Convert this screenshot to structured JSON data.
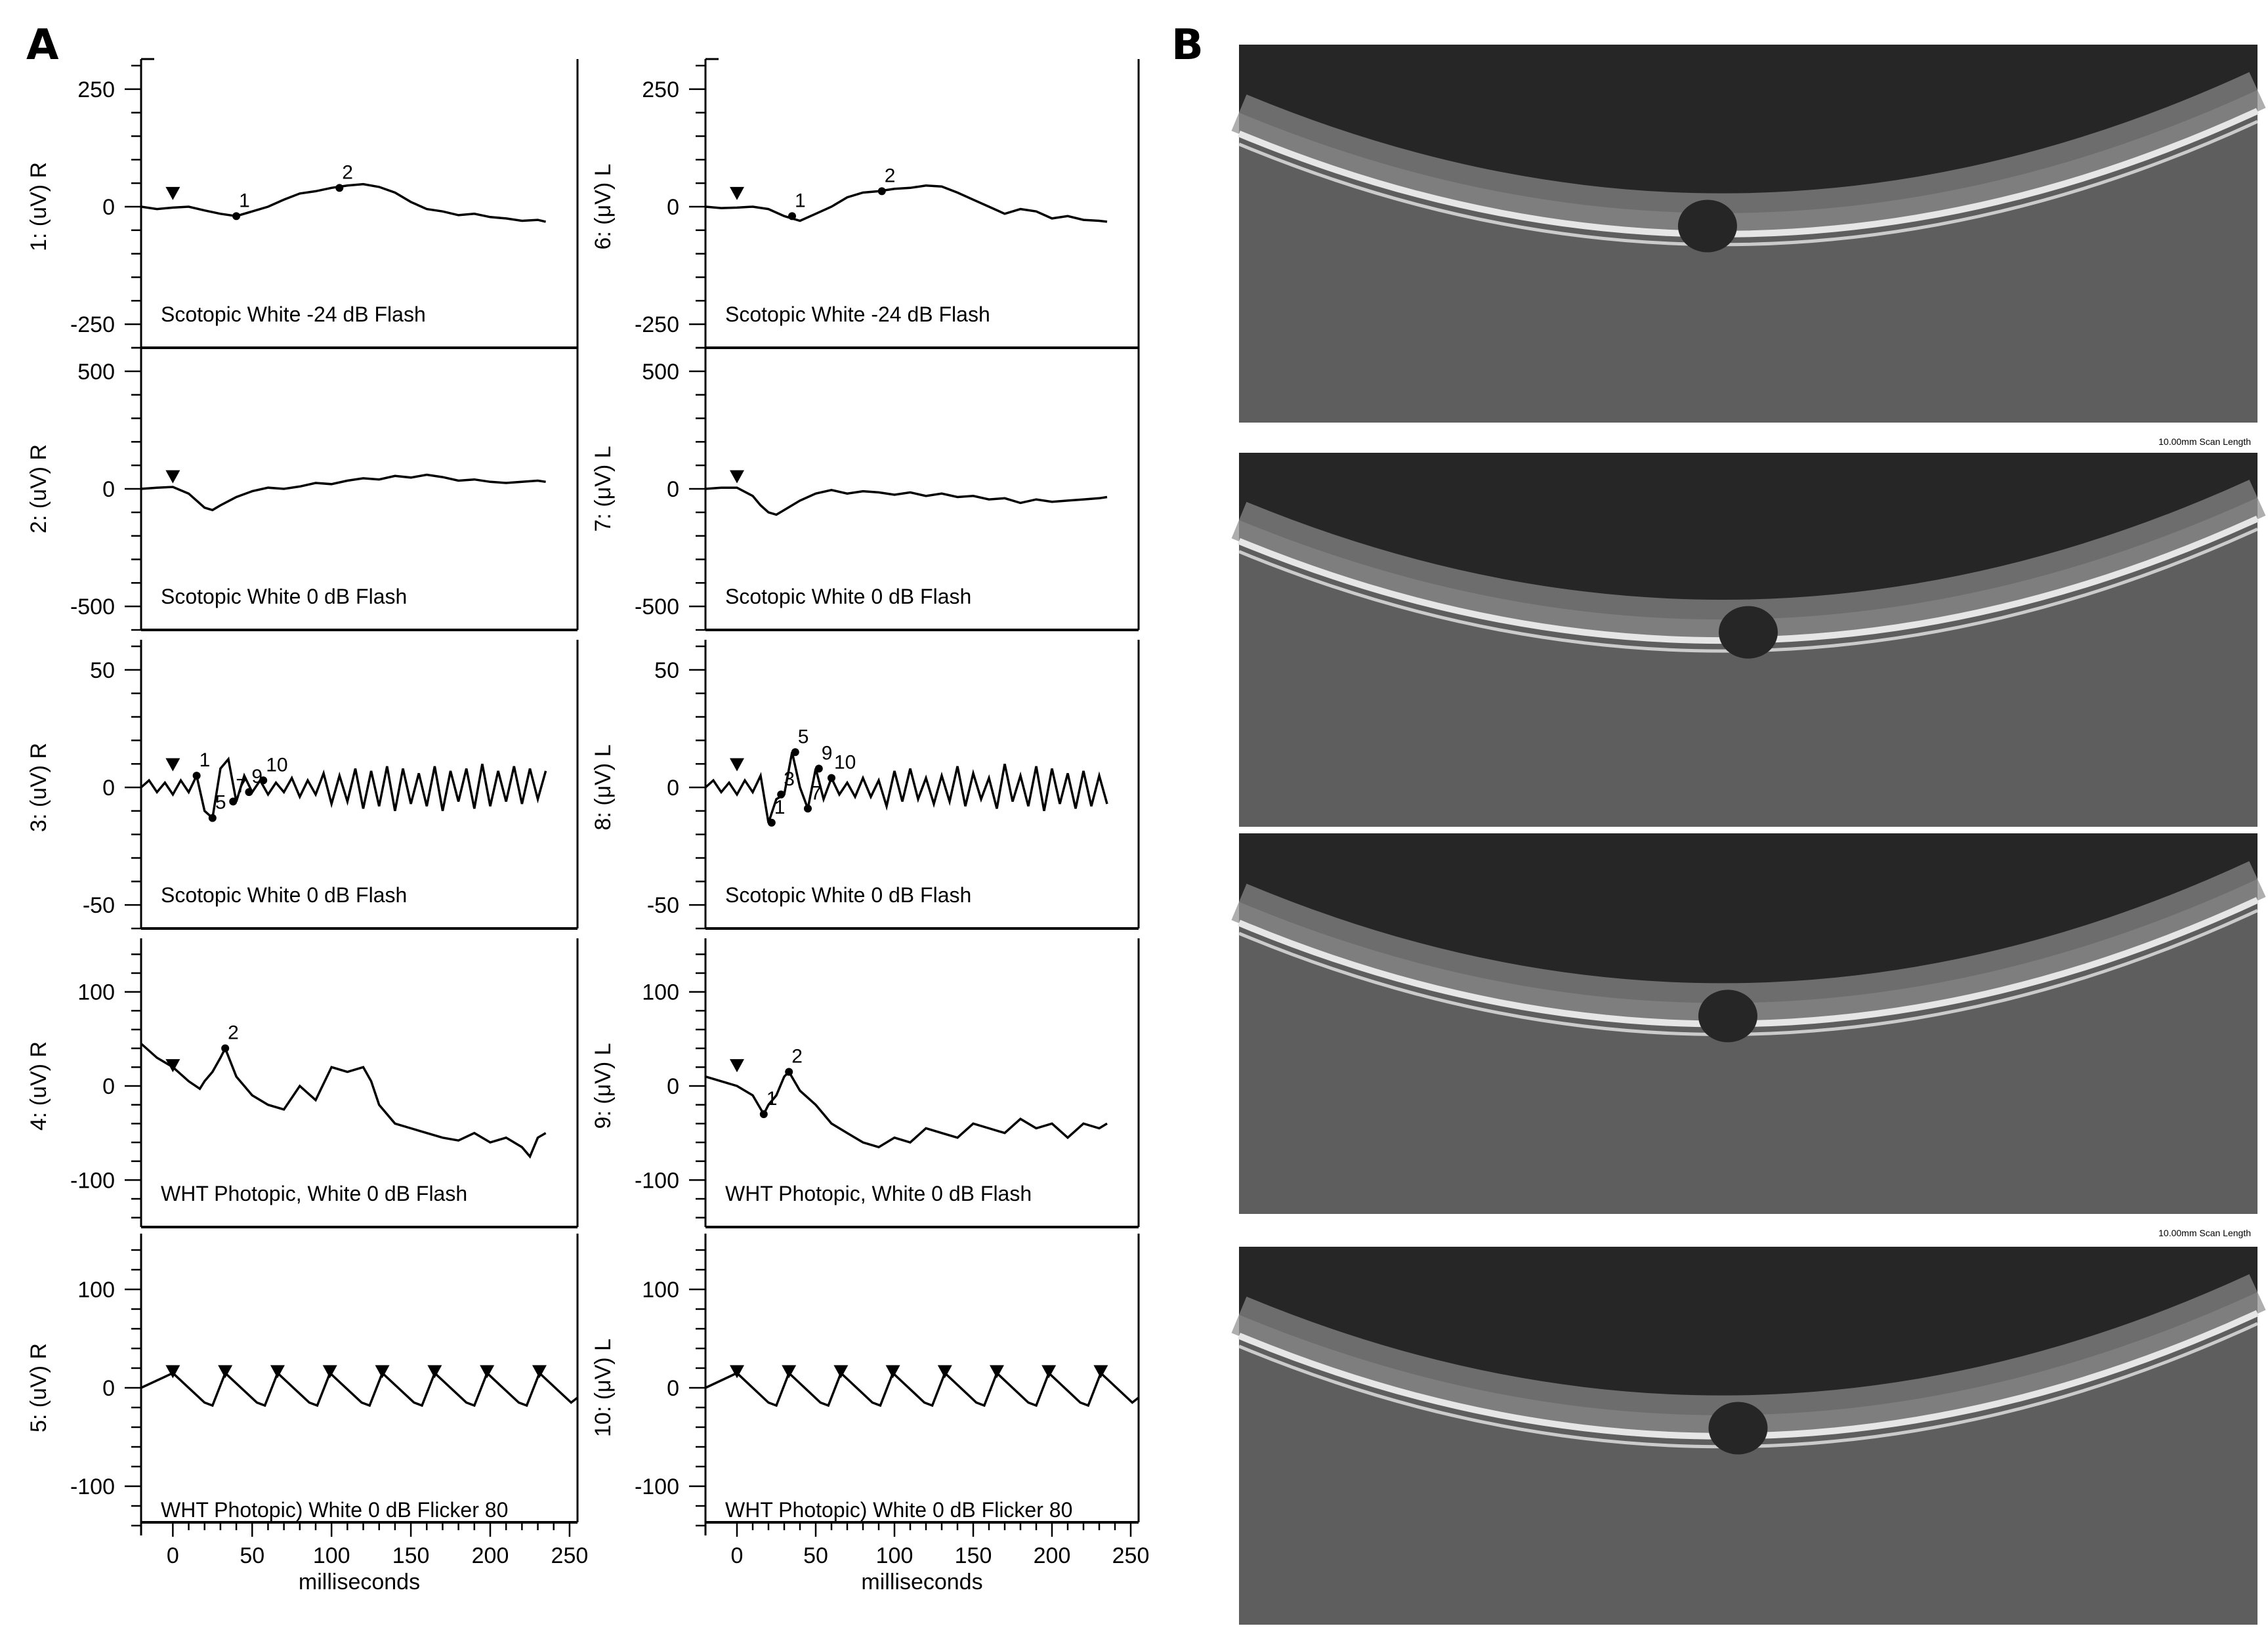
{
  "panels": {
    "a_label": "A",
    "b_label": "B"
  },
  "time_axis": {
    "xlabel": "milliseconds",
    "xlim": [
      -20,
      255
    ],
    "ticks": [
      0,
      50,
      100,
      150,
      200,
      250
    ],
    "tick_labels": [
      "0",
      "50",
      "100",
      "150",
      "200",
      "250"
    ]
  },
  "oct": {
    "scan_label": "10.00mm Scan Length",
    "panel_colors": {
      "background": "#262626",
      "tissue": "#8c8c8c",
      "bright_band": "#e6e6e6"
    }
  },
  "colors": {
    "trace": "#000000",
    "frame": "#000000"
  },
  "chart_data": [
    {
      "type": "line",
      "eye": "R",
      "ylabel": "1:  (uV)  R",
      "ylim": [
        -300,
        300
      ],
      "yticks": [
        250,
        0,
        -250
      ],
      "ytick_labels": [
        "250",
        "0",
        "-250"
      ],
      "caption": "Scotopic  White -24 dB Flash",
      "x": [
        -20,
        -10,
        0,
        10,
        20,
        30,
        40,
        50,
        60,
        70,
        80,
        90,
        100,
        110,
        120,
        130,
        140,
        150,
        160,
        170,
        180,
        190,
        200,
        210,
        220,
        230,
        235
      ],
      "y": [
        0,
        -5,
        -2,
        0,
        -8,
        -15,
        -20,
        -10,
        0,
        15,
        28,
        33,
        40,
        45,
        48,
        42,
        30,
        10,
        -5,
        -10,
        -18,
        -15,
        -22,
        -25,
        -30,
        -28,
        -32
      ],
      "stimuli": [
        0
      ],
      "markers": [
        {
          "label": "1",
          "t": 40
        },
        {
          "label": "2",
          "t": 105
        }
      ]
    },
    {
      "type": "line",
      "eye": "R",
      "ylabel": "2:  (uV)  R",
      "ylim": [
        -600,
        600
      ],
      "yticks": [
        500,
        0,
        -500
      ],
      "ytick_labels": [
        "500",
        "0",
        "-500"
      ],
      "caption": "Scotopic  White 0 dB Flash",
      "x": [
        -20,
        -10,
        0,
        10,
        15,
        20,
        25,
        30,
        40,
        50,
        60,
        70,
        80,
        90,
        100,
        110,
        120,
        130,
        140,
        150,
        160,
        170,
        180,
        190,
        200,
        210,
        220,
        230,
        235
      ],
      "y": [
        0,
        5,
        8,
        -20,
        -50,
        -80,
        -90,
        -70,
        -35,
        -10,
        5,
        0,
        10,
        25,
        20,
        35,
        45,
        40,
        55,
        48,
        60,
        50,
        35,
        40,
        30,
        25,
        30,
        35,
        30
      ],
      "stimuli": [
        0
      ],
      "markers": []
    },
    {
      "type": "line",
      "eye": "R",
      "ylabel": "3:  (uV)  R",
      "ylim": [
        -60,
        60
      ],
      "yticks": [
        50,
        0,
        -50
      ],
      "ytick_labels": [
        "50",
        "0",
        "-50"
      ],
      "caption": "Scotopic  White 0 dB Flash",
      "x": [
        -20,
        -15,
        -10,
        -5,
        0,
        5,
        10,
        15,
        20,
        25,
        30,
        35,
        40,
        45,
        50,
        55,
        60,
        65,
        70,
        75,
        80,
        85,
        90,
        95,
        100,
        105,
        110,
        115,
        120,
        125,
        130,
        135,
        140,
        145,
        150,
        155,
        160,
        165,
        170,
        175,
        180,
        185,
        190,
        195,
        200,
        205,
        210,
        215,
        220,
        225,
        230,
        235
      ],
      "y": [
        0,
        3,
        -2,
        2,
        -3,
        3,
        -2,
        5,
        -10,
        -13,
        8,
        12,
        -6,
        5,
        -2,
        3,
        -3,
        2,
        -2,
        4,
        -4,
        3,
        -3,
        6,
        -7,
        5,
        -6,
        8,
        -9,
        7,
        -8,
        9,
        -10,
        8,
        -7,
        6,
        -8,
        9,
        -10,
        7,
        -6,
        8,
        -9,
        10,
        -8,
        7,
        -6,
        9,
        -7,
        8,
        -5,
        7
      ],
      "stimuli": [
        0
      ],
      "markers": [
        {
          "label": "1",
          "t": 15
        },
        {
          "label": "5",
          "t": 25
        },
        {
          "label": "7",
          "t": 38
        },
        {
          "label": "9",
          "t": 48
        },
        {
          "label": "10",
          "t": 57
        }
      ]
    },
    {
      "type": "line",
      "eye": "R",
      "ylabel": "4:  (uV)  R",
      "ylim": [
        -150,
        150
      ],
      "yticks": [
        100,
        0,
        -100
      ],
      "ytick_labels": [
        "100",
        "0",
        "-100"
      ],
      "caption": "WHT Photopic,  White 0 dB Flash",
      "x": [
        -20,
        -10,
        0,
        10,
        17,
        20,
        25,
        30,
        33,
        40,
        50,
        60,
        70,
        80,
        90,
        100,
        110,
        120,
        125,
        130,
        140,
        150,
        160,
        170,
        180,
        190,
        200,
        210,
        220,
        225,
        230,
        235
      ],
      "y": [
        45,
        30,
        20,
        5,
        -3,
        5,
        15,
        30,
        40,
        10,
        -10,
        -20,
        -25,
        0,
        -15,
        20,
        15,
        20,
        5,
        -20,
        -40,
        -45,
        -50,
        -55,
        -58,
        -50,
        -60,
        -55,
        -65,
        -75,
        -55,
        -50
      ],
      "stimuli": [
        0
      ],
      "markers": [
        {
          "label": "2",
          "t": 33
        }
      ]
    },
    {
      "type": "line",
      "eye": "R",
      "ylabel": "5:  (uV)  R",
      "ylim": [
        -150,
        150
      ],
      "yticks": [
        100,
        0,
        -100
      ],
      "ytick_labels": [
        "100",
        "0",
        "-100"
      ],
      "caption": "WHT Photopic)  White 0 dB Flicker 80",
      "x": [
        -20,
        0,
        10,
        20,
        25,
        33,
        43,
        53,
        58,
        66,
        76,
        86,
        91,
        99,
        109,
        119,
        124,
        132,
        142,
        152,
        157,
        165,
        175,
        185,
        190,
        198,
        208,
        218,
        223,
        231,
        241,
        251,
        255
      ],
      "y": [
        0,
        15,
        0,
        -15,
        -18,
        15,
        0,
        -15,
        -18,
        15,
        0,
        -15,
        -18,
        15,
        0,
        -15,
        -18,
        15,
        0,
        -15,
        -18,
        15,
        0,
        -15,
        -18,
        15,
        0,
        -15,
        -18,
        15,
        0,
        -15,
        -10
      ],
      "stimuli": [
        0,
        33,
        66,
        99,
        132,
        165,
        198,
        231
      ],
      "markers": []
    },
    {
      "type": "line",
      "eye": "L",
      "ylabel": "6:  (μV)  L",
      "ylim": [
        -300,
        300
      ],
      "yticks": [
        250,
        0,
        -250
      ],
      "ytick_labels": [
        "250",
        "0",
        "-250"
      ],
      "caption": "Scotopic  White -24 dB Flash",
      "x": [
        -20,
        -10,
        0,
        10,
        20,
        30,
        40,
        50,
        60,
        70,
        80,
        90,
        100,
        110,
        120,
        130,
        140,
        150,
        160,
        170,
        180,
        190,
        200,
        210,
        220,
        230,
        235
      ],
      "y": [
        0,
        -3,
        -2,
        0,
        -5,
        -20,
        -30,
        -15,
        0,
        20,
        30,
        33,
        38,
        40,
        45,
        43,
        30,
        15,
        0,
        -15,
        -5,
        -10,
        -25,
        -20,
        -28,
        -30,
        -32
      ],
      "stimuli": [
        0
      ],
      "markers": [
        {
          "label": "1",
          "t": 35
        },
        {
          "label": "2",
          "t": 92
        }
      ]
    },
    {
      "type": "line",
      "eye": "L",
      "ylabel": "7:  (μV)  L",
      "ylim": [
        -600,
        600
      ],
      "yticks": [
        500,
        0,
        -500
      ],
      "ytick_labels": [
        "500",
        "0",
        "-500"
      ],
      "caption": "Scotopic  White 0 dB Flash",
      "x": [
        -20,
        -10,
        0,
        10,
        15,
        20,
        25,
        30,
        40,
        50,
        60,
        70,
        80,
        90,
        100,
        110,
        120,
        130,
        140,
        150,
        160,
        170,
        180,
        190,
        200,
        210,
        220,
        230,
        235
      ],
      "y": [
        0,
        5,
        5,
        -30,
        -70,
        -100,
        -110,
        -90,
        -50,
        -20,
        -5,
        -20,
        -10,
        -15,
        -25,
        -15,
        -30,
        -20,
        -35,
        -30,
        -45,
        -40,
        -60,
        -45,
        -55,
        -50,
        -45,
        -40,
        -35
      ],
      "stimuli": [
        0
      ],
      "markers": []
    },
    {
      "type": "line",
      "eye": "L",
      "ylabel": "8:  (μV)  L",
      "ylim": [
        -60,
        60
      ],
      "yticks": [
        50,
        0,
        -50
      ],
      "ytick_labels": [
        "50",
        "0",
        "-50"
      ],
      "caption": "Scotopic  White 0 dB Flash",
      "x": [
        -20,
        -15,
        -10,
        -5,
        0,
        5,
        10,
        15,
        20,
        25,
        30,
        35,
        40,
        45,
        50,
        55,
        60,
        65,
        70,
        75,
        80,
        85,
        90,
        95,
        100,
        105,
        110,
        115,
        120,
        125,
        130,
        135,
        140,
        145,
        150,
        155,
        160,
        165,
        170,
        175,
        180,
        185,
        190,
        195,
        200,
        205,
        210,
        215,
        220,
        225,
        230,
        235
      ],
      "y": [
        0,
        3,
        -2,
        2,
        -3,
        3,
        -2,
        5,
        -15,
        -5,
        -3,
        15,
        0,
        -9,
        8,
        -5,
        4,
        -3,
        2,
        -4,
        4,
        -4,
        3,
        -8,
        7,
        -6,
        8,
        -5,
        4,
        -7,
        5,
        -6,
        9,
        -8,
        6,
        -5,
        4,
        -9,
        10,
        -6,
        5,
        -8,
        9,
        -10,
        8,
        -7,
        6,
        -9,
        7,
        -8,
        5,
        -7
      ],
      "stimuli": [
        0
      ],
      "markers": [
        {
          "label": "1",
          "t": 22
        },
        {
          "label": "3",
          "t": 28
        },
        {
          "label": "5",
          "t": 37
        },
        {
          "label": "7",
          "t": 45
        },
        {
          "label": "9",
          "t": 52
        },
        {
          "label": "10",
          "t": 60
        }
      ]
    },
    {
      "type": "line",
      "eye": "L",
      "ylabel": "9:  (μV)  L",
      "ylim": [
        -150,
        150
      ],
      "yticks": [
        100,
        0,
        -100
      ],
      "ytick_labels": [
        "100",
        "0",
        "-100"
      ],
      "caption": "WHT Photopic,  White 0 dB Flash",
      "x": [
        -20,
        -10,
        0,
        10,
        17,
        20,
        25,
        30,
        33,
        40,
        50,
        60,
        70,
        80,
        90,
        100,
        110,
        120,
        130,
        140,
        150,
        160,
        170,
        180,
        190,
        200,
        210,
        220,
        230,
        235
      ],
      "y": [
        10,
        5,
        0,
        -10,
        -30,
        -20,
        -10,
        10,
        15,
        -5,
        -20,
        -40,
        -50,
        -60,
        -65,
        -55,
        -60,
        -45,
        -50,
        -55,
        -40,
        -45,
        -50,
        -35,
        -45,
        -40,
        -55,
        -40,
        -45,
        -40
      ],
      "stimuli": [
        0
      ],
      "markers": [
        {
          "label": "1",
          "t": 17
        },
        {
          "label": "2",
          "t": 33
        }
      ]
    },
    {
      "type": "line",
      "eye": "L",
      "ylabel": "10:  (μV)  L",
      "ylim": [
        -150,
        150
      ],
      "yticks": [
        100,
        0,
        -100
      ],
      "ytick_labels": [
        "100",
        "0",
        "-100"
      ],
      "caption": "WHT Photopic)  White 0 dB Flicker 80",
      "x": [
        -20,
        0,
        10,
        20,
        25,
        33,
        43,
        53,
        58,
        66,
        76,
        86,
        91,
        99,
        109,
        119,
        124,
        132,
        142,
        152,
        157,
        165,
        175,
        185,
        190,
        198,
        208,
        218,
        223,
        231,
        241,
        251,
        255
      ],
      "y": [
        0,
        15,
        0,
        -15,
        -18,
        15,
        0,
        -15,
        -18,
        15,
        0,
        -15,
        -18,
        15,
        0,
        -15,
        -18,
        15,
        0,
        -15,
        -18,
        15,
        0,
        -15,
        -18,
        15,
        0,
        -15,
        -18,
        15,
        0,
        -15,
        -10
      ],
      "stimuli": [
        0,
        33,
        66,
        99,
        132,
        165,
        198,
        231
      ],
      "markers": []
    }
  ]
}
